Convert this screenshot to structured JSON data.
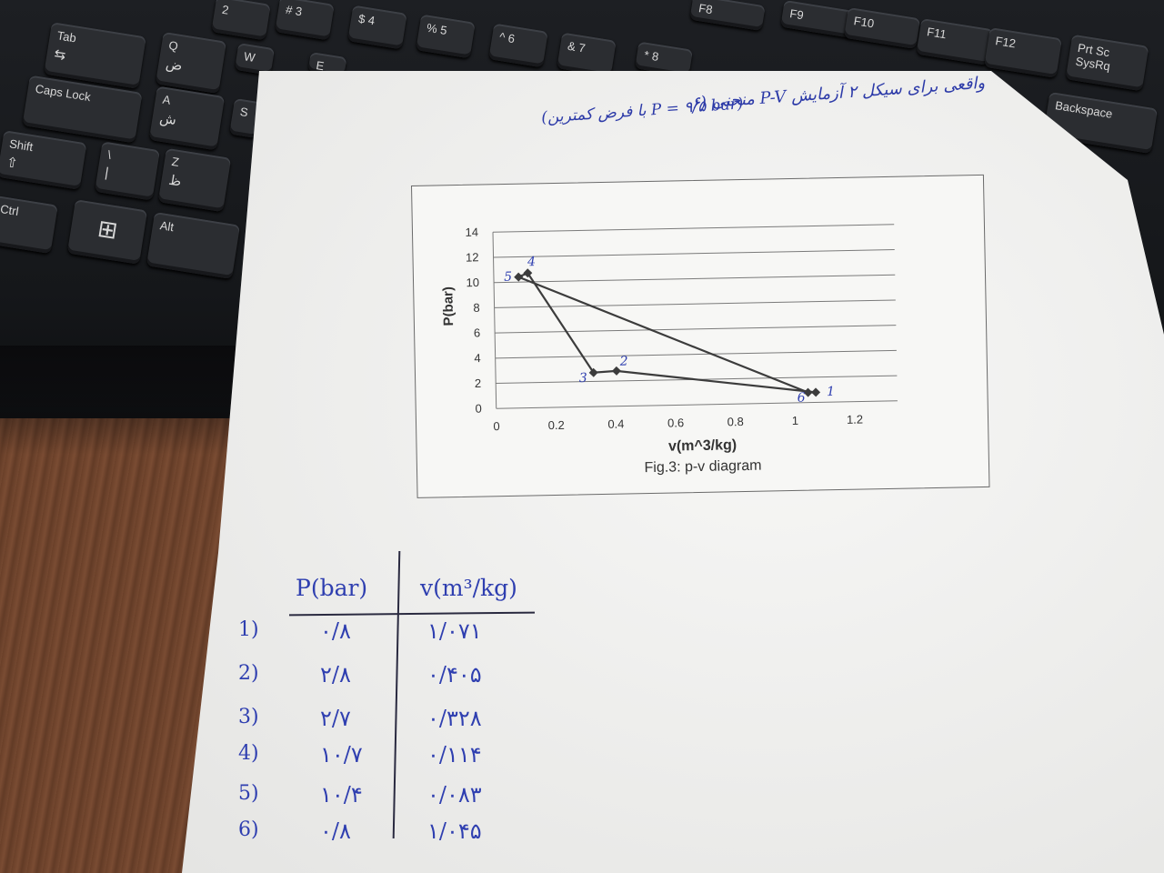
{
  "keyboard": {
    "keys": [
      {
        "label": "Tab",
        "glyph": "⇆"
      },
      {
        "label": "Caps Lock",
        "glyph": ""
      },
      {
        "label": "Shift",
        "glyph": "⇧"
      },
      {
        "label": "Ctrl",
        "glyph": ""
      },
      {
        "label": "Alt",
        "glyph": ""
      },
      {
        "label": "Q",
        "glyph": "ض"
      },
      {
        "label": "A",
        "glyph": "ش"
      },
      {
        "label": "Z",
        "glyph": "ظ"
      },
      {
        "label": "W",
        "glyph": ""
      },
      {
        "label": "E",
        "glyph": ""
      },
      {
        "label": "S",
        "glyph": ""
      },
      {
        "label": "\\",
        "glyph": "|"
      },
      {
        "label": "F8",
        "glyph": ""
      },
      {
        "label": "F9",
        "glyph": ""
      },
      {
        "label": "F10",
        "glyph": ""
      },
      {
        "label": "F11",
        "glyph": ""
      },
      {
        "label": "F12",
        "glyph": ""
      },
      {
        "label": "Prt Sc SysRq",
        "glyph": ""
      },
      {
        "label": "Backspace",
        "glyph": ""
      },
      {
        "label": "2",
        "glyph": ""
      },
      {
        "label": "# 3",
        "glyph": ""
      },
      {
        "label": "$ 4",
        "glyph": ""
      },
      {
        "label": "% 5",
        "glyph": ""
      },
      {
        "label": "^ 6",
        "glyph": ""
      },
      {
        "label": "& 7",
        "glyph": ""
      },
      {
        "label": "* 8",
        "glyph": ""
      }
    ],
    "windows_icon": "windows-logo-icon"
  },
  "note": {
    "line1": "۶) منحنی P-V واقعی برای سیکل ۲ آزمایش",
    "line2": "(با فرض کمترین P = ۹/۵ bar)"
  },
  "chart_data": {
    "type": "line",
    "caption": "Fig.3: p-v diagram",
    "xlabel": "v(m^3/kg)",
    "ylabel": "P(bar)",
    "xlim": [
      0,
      1.2
    ],
    "ylim": [
      0,
      14
    ],
    "xticks": [
      "0",
      "0.2",
      "0.4",
      "0.6",
      "0.8",
      "1",
      "1.2"
    ],
    "yticks": [
      "0",
      "2",
      "4",
      "6",
      "8",
      "10",
      "12",
      "14"
    ],
    "grid": "horizontal",
    "series": [
      {
        "points": [
          {
            "label": "1",
            "x": 1.071,
            "y": 0.8
          },
          {
            "label": "2",
            "x": 0.405,
            "y": 2.8
          },
          {
            "label": "3",
            "x": 0.328,
            "y": 2.7
          },
          {
            "label": "4",
            "x": 0.114,
            "y": 10.7
          },
          {
            "label": "5",
            "x": 0.083,
            "y": 10.4
          },
          {
            "label": "6",
            "x": 1.045,
            "y": 0.8
          }
        ],
        "closed": true
      }
    ]
  },
  "table": {
    "headers": [
      "P(bar)",
      "v(m³/kg)"
    ],
    "rows": [
      {
        "idx": "1)",
        "p": "۰/۸",
        "v": "۱/۰۷۱"
      },
      {
        "idx": "2)",
        "p": "۲/۸",
        "v": "۰/۴۰۵"
      },
      {
        "idx": "3)",
        "p": "۲/۷",
        "v": "۰/۳۲۸"
      },
      {
        "idx": "4)",
        "p": "۱۰/۷",
        "v": "۰/۱۱۴"
      },
      {
        "idx": "5)",
        "p": "۱۰/۴",
        "v": "۰/۰۸۳"
      },
      {
        "idx": "6)",
        "p": "۰/۸",
        "v": "۱/۰۴۵"
      }
    ]
  }
}
